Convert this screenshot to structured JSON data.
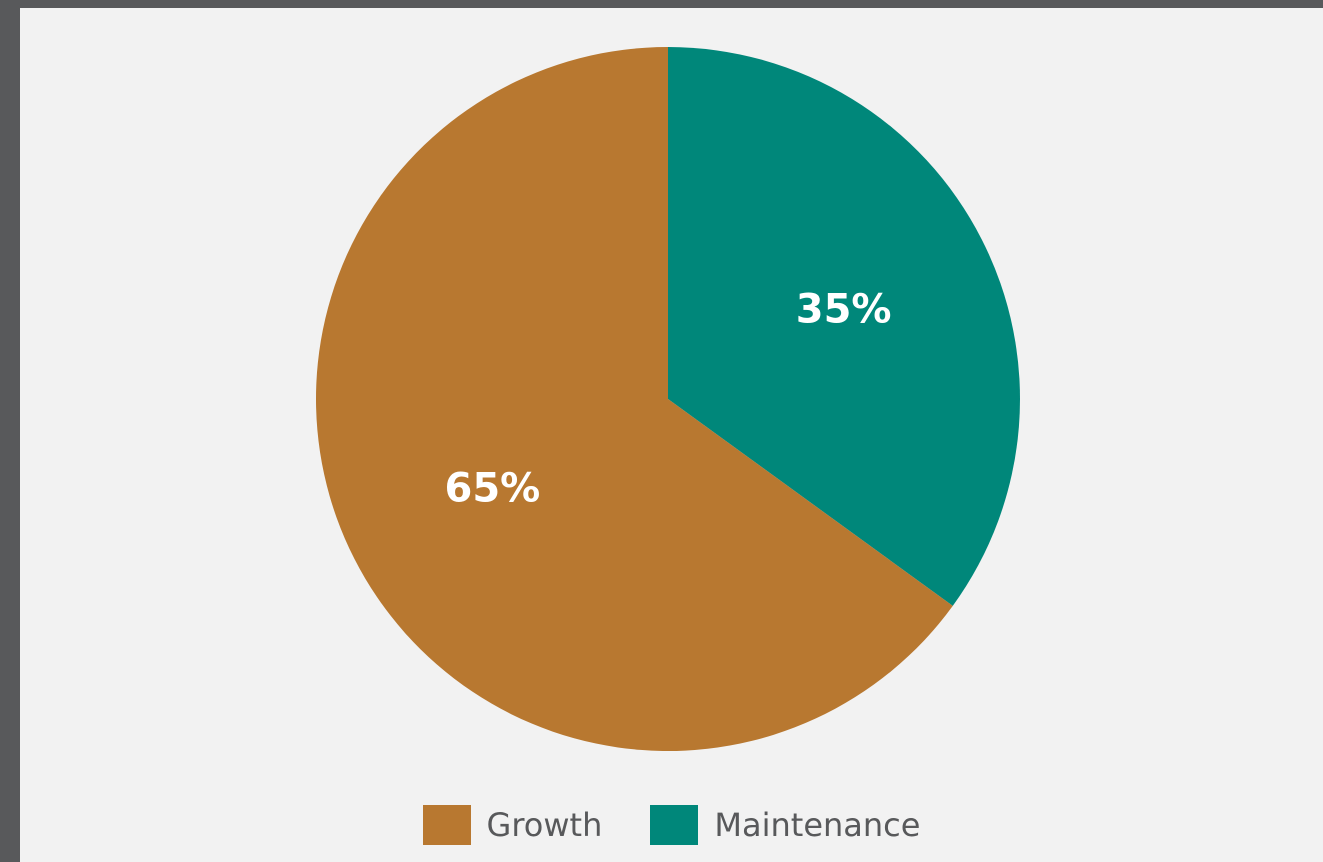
{
  "chart_data": {
    "type": "pie",
    "slices": [
      {
        "name": "Maintenance",
        "value": 35,
        "label": "35%",
        "color": "#00877a"
      },
      {
        "name": "Growth",
        "value": 65,
        "label": "65%",
        "color": "#b87830"
      }
    ],
    "start_angle_deg": 0,
    "direction": "clockwise",
    "legend": {
      "position": "bottom",
      "items": [
        {
          "name": "Growth",
          "color": "#b87830"
        },
        {
          "name": "Maintenance",
          "color": "#00877a"
        }
      ]
    }
  }
}
